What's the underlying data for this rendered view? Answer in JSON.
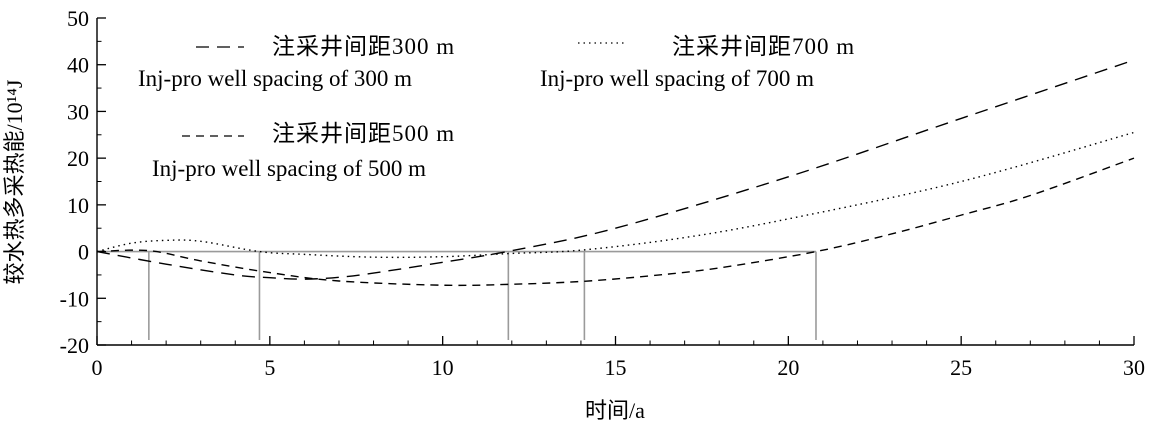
{
  "chart_data": {
    "type": "line",
    "xlabel": "时间/a",
    "ylabel": "较水热多采热能/10¹⁴J",
    "xlim": [
      0,
      30
    ],
    "ylim": [
      -20,
      50
    ],
    "xticks": [
      "0",
      "5",
      "10",
      "15",
      "20",
      "25",
      "30"
    ],
    "yticks": [
      "-20",
      "-10",
      "0",
      "10",
      "20",
      "30",
      "40",
      "50"
    ],
    "grid": false,
    "legend_position": "top-left",
    "series": [
      {
        "name": "注采井间距300 m",
        "name_en": "Inj-pro well spacing of 300 m",
        "style": "long-dash",
        "x": [
          0,
          2,
          4,
          5,
          6,
          7,
          8,
          10,
          12,
          15,
          20,
          25,
          30
        ],
        "y": [
          0,
          -2.7,
          -5.0,
          -5.6,
          -5.9,
          -5.5,
          -4.6,
          -2.3,
          0.2,
          5.0,
          16.0,
          28.5,
          41.0
        ]
      },
      {
        "name": "注采井间距500 m",
        "name_en": "Inj-pro well spacing of 500 m",
        "style": "short-dash",
        "x": [
          0,
          1.5,
          3,
          5,
          7,
          10,
          12,
          14,
          16,
          18,
          20.8,
          23,
          25,
          27,
          30
        ],
        "y": [
          0,
          0.2,
          -2.0,
          -4.5,
          -6.3,
          -7.2,
          -7.0,
          -6.4,
          -5.2,
          -3.5,
          0,
          3.8,
          7.8,
          12.0,
          20.0
        ]
      },
      {
        "name": "注采井间距700 m",
        "name_en": "Inj-pro well spacing of 700 m",
        "style": "dotted",
        "x": [
          0,
          1,
          2,
          3,
          4.7,
          6,
          8,
          10,
          12,
          14,
          17,
          20,
          25,
          30
        ],
        "y": [
          0,
          1.8,
          2.4,
          2.2,
          0,
          -0.6,
          -1.2,
          -1.1,
          -0.4,
          0.3,
          3.0,
          7.0,
          15.0,
          25.5
        ]
      }
    ],
    "reference_lines": {
      "y_zero_segment": [
        0,
        20.8
      ],
      "vertical_x": [
        1.5,
        4.7,
        11.9,
        14.1,
        20.8
      ]
    }
  }
}
